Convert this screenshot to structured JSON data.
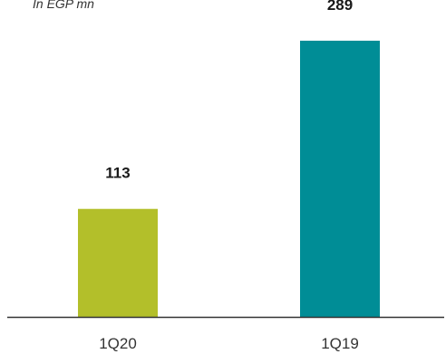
{
  "chart_data": {
    "type": "bar",
    "unit_note": "In EGP mn",
    "categories": [
      "1Q20",
      "1Q19"
    ],
    "values": [
      113,
      289
    ],
    "data_labels": [
      "113",
      "289"
    ],
    "colors": [
      "#b3bf2a",
      "#008d96"
    ],
    "axis_color": "#333333",
    "ylim": [
      0,
      300
    ],
    "grid": false,
    "legend": "none"
  }
}
